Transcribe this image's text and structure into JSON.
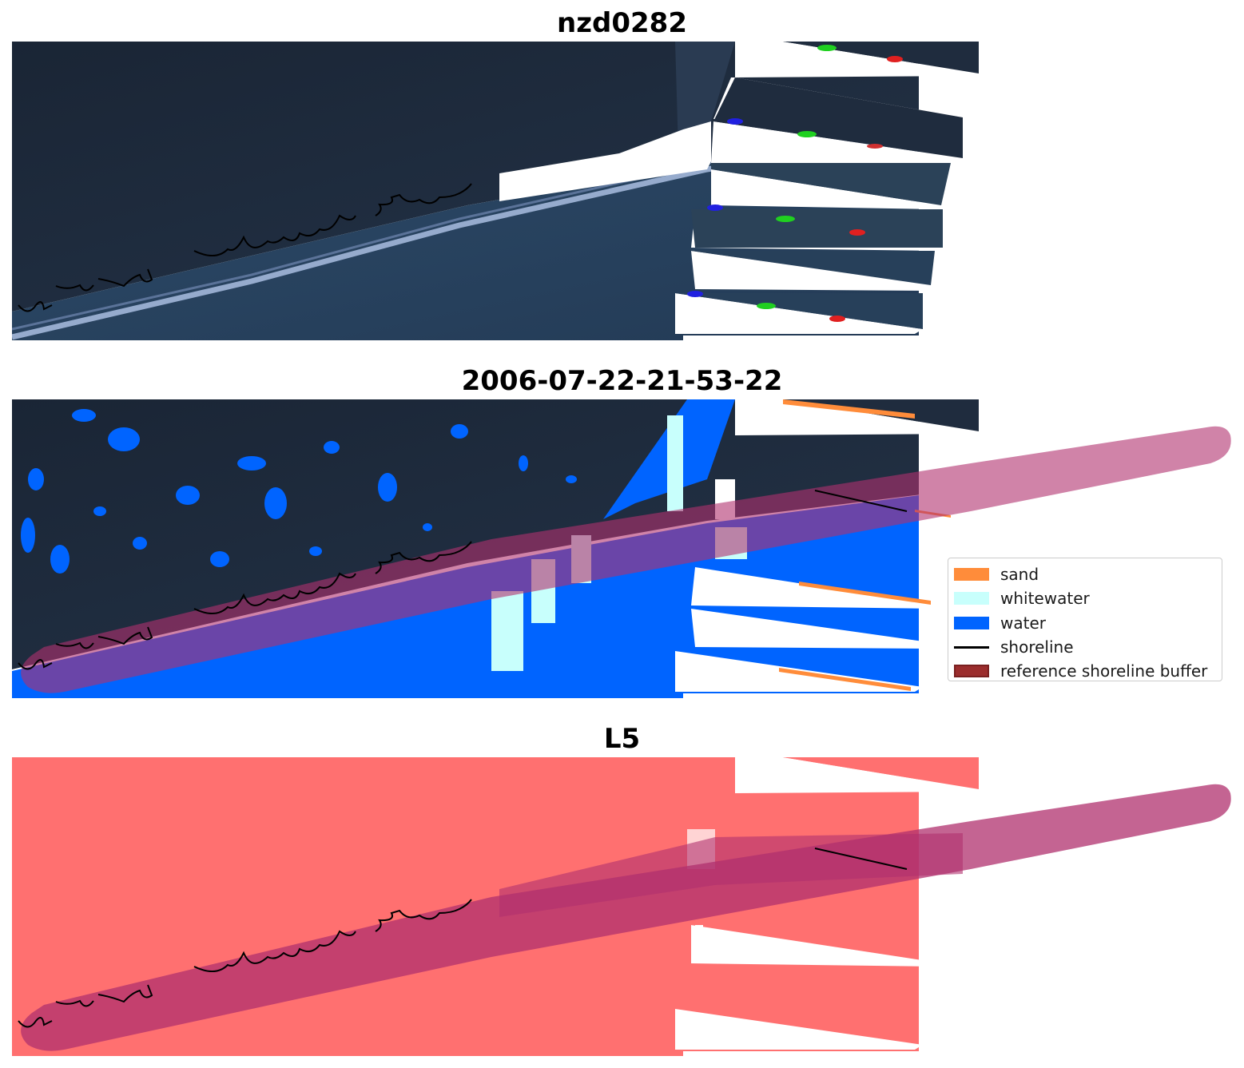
{
  "panels": [
    {
      "title": "nzd0282",
      "kind": "rgb-image"
    },
    {
      "title": "2006-07-22-21-53-22",
      "kind": "classified-image"
    },
    {
      "title": "L5",
      "kind": "mask-image"
    }
  ],
  "legend": {
    "items": [
      {
        "label": "sand",
        "color": "#ff8c3a",
        "kind": "patch"
      },
      {
        "label": "whitewater",
        "color": "#c8fffc",
        "kind": "patch"
      },
      {
        "label": "water",
        "color": "#0064ff",
        "kind": "patch"
      },
      {
        "label": "shoreline",
        "color": "#000000",
        "kind": "line"
      },
      {
        "label": "reference shoreline buffer",
        "color": "#9b2d2d",
        "kind": "patch"
      }
    ]
  },
  "colors": {
    "land": "#1e2a3a",
    "sea": "#2d4a66",
    "surf": "#9fb4d8",
    "mask": "#ff7070",
    "buffer": "#b0306e"
  }
}
